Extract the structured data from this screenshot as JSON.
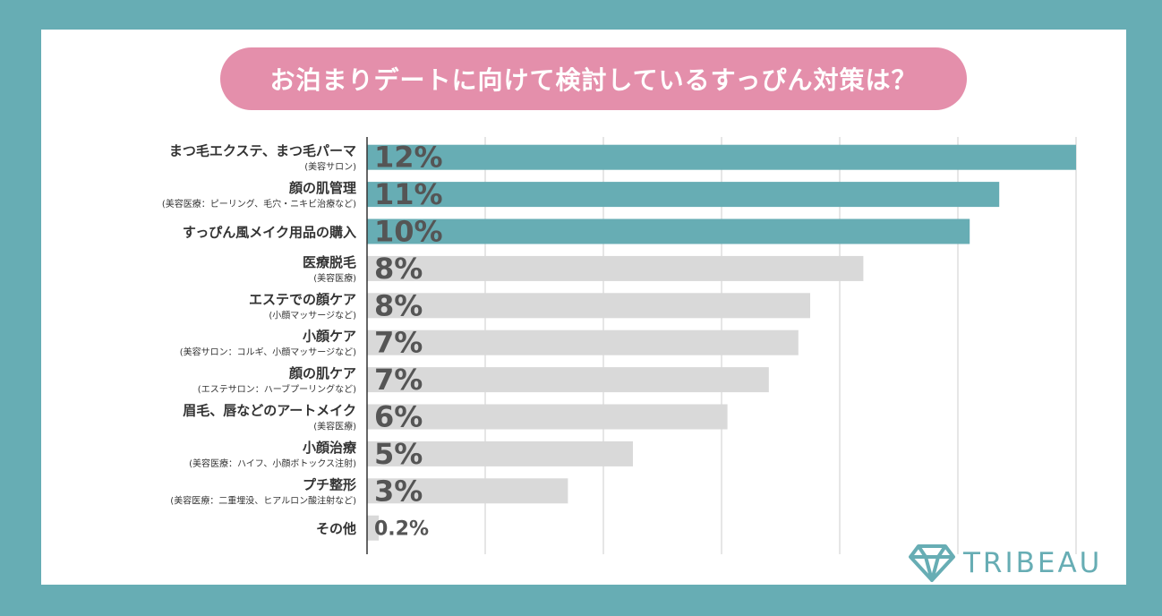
{
  "title": "お泊まりデートに向けて検討しているすっぴん対策は？",
  "brand": "TRIBEAU",
  "colors": {
    "frame": "#67adb4",
    "highlight_bar": "#67adb4",
    "other_bar": "#d9d9d9",
    "title_bg": "#e48fab",
    "value_text": "#555555"
  },
  "chart_data": {
    "type": "bar",
    "orientation": "horizontal",
    "title": "お泊まりデートに向けて検討しているすっぴん対策は？",
    "xlabel": "",
    "ylabel": "",
    "grid": true,
    "categories": [
      {
        "label": "まつ毛エクステ、まつ毛パーマ",
        "sub": "(美容サロン)"
      },
      {
        "label": "顔の肌管理",
        "sub": "(美容医療：ピーリング、毛穴・ニキビ治療など)"
      },
      {
        "label": "すっぴん風メイク用品の購入",
        "sub": ""
      },
      {
        "label": "医療脱毛",
        "sub": "(美容医療)"
      },
      {
        "label": "エステでの顔ケア",
        "sub": "(小顔マッサージなど)"
      },
      {
        "label": "小顔ケア",
        "sub": "(美容サロン：コルギ、小顔マッサージなど)"
      },
      {
        "label": "顔の肌ケア",
        "sub": "(エステサロン：ハーブプーリングなど)"
      },
      {
        "label": "眉毛、唇などのアートメイク",
        "sub": "(美容医療)"
      },
      {
        "label": "小顔治療",
        "sub": "(美容医療：ハイフ、小顔ボトックス注射)"
      },
      {
        "label": "プチ整形",
        "sub": "(美容医療：二重埋没、ヒアルロン酸注射など)"
      },
      {
        "label": "その他",
        "sub": ""
      }
    ],
    "values": [
      12,
      11,
      10,
      8,
      8,
      7,
      7,
      6,
      5,
      3,
      0.2
    ],
    "precise_values": [
      12,
      10.7,
      10.2,
      8.4,
      7.5,
      7.3,
      6.8,
      6.1,
      4.5,
      3.4,
      0.2
    ],
    "value_labels": [
      "12%",
      "11%",
      "10%",
      "8%",
      "8%",
      "7%",
      "7%",
      "6%",
      "5%",
      "3%",
      "0.2%"
    ],
    "highlighted": [
      true,
      true,
      true,
      false,
      false,
      false,
      false,
      false,
      false,
      false,
      false
    ],
    "xlim": [
      0,
      12
    ]
  }
}
